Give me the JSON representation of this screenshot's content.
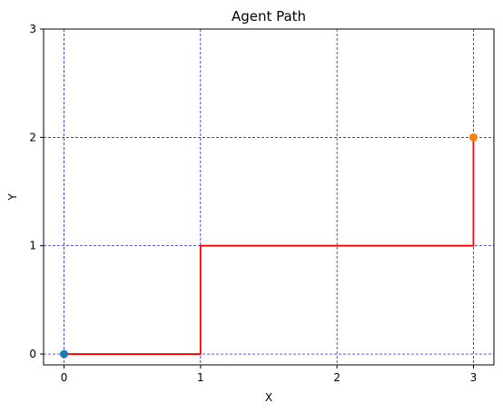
{
  "chart_data": {
    "type": "line",
    "title": "Agent Path",
    "xlabel": "X",
    "ylabel": "Y",
    "xlim": [
      -0.15,
      3.15
    ],
    "ylim": [
      -0.1,
      3.0
    ],
    "x_ticks": [
      "0",
      "1",
      "2",
      "3"
    ],
    "y_ticks": [
      "0",
      "1",
      "2",
      "3"
    ],
    "grid": true,
    "grid_color": "#0000cc",
    "path": {
      "color": "#ff0000",
      "x": [
        0,
        1,
        1,
        3,
        3
      ],
      "y": [
        0,
        0,
        1,
        1,
        2
      ]
    },
    "start_point": {
      "x": 0,
      "y": 0,
      "color": "#1f77b4"
    },
    "end_point": {
      "x": 3,
      "y": 2,
      "color": "#ff7f0e"
    }
  }
}
